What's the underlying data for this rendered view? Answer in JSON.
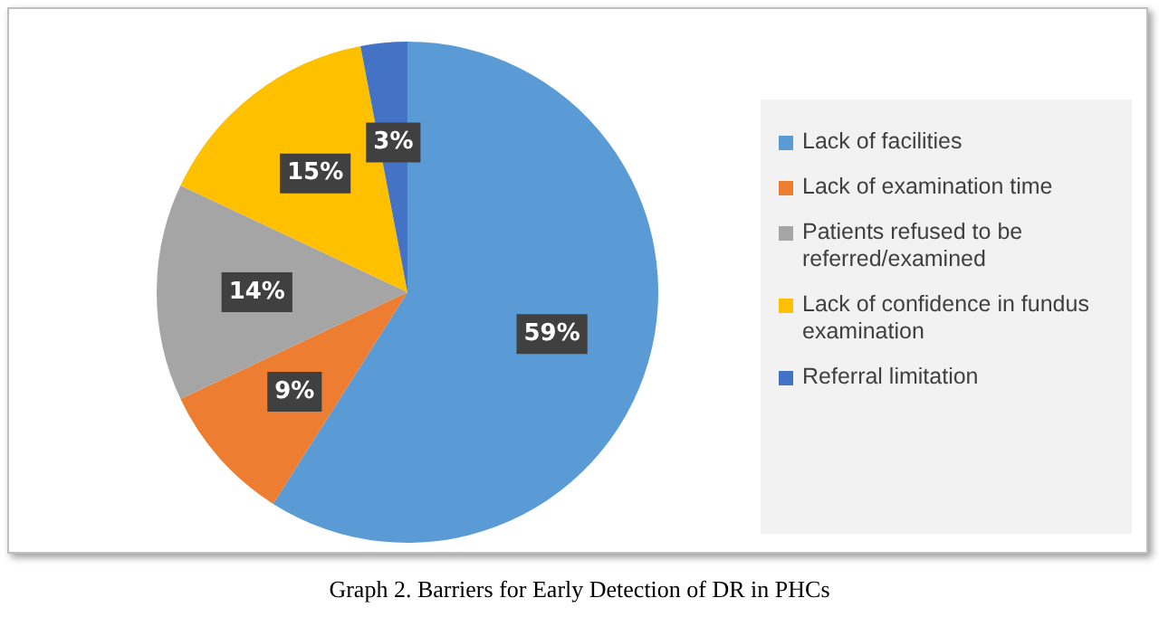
{
  "chart_data": {
    "type": "pie",
    "title": "Graph 2. Barriers for Early Detection of DR in PHCs",
    "categories": [
      "Lack of facilities",
      "Lack of examination time",
      "Patients refused to be referred/examined",
      "Lack of confidence in fundus examination",
      "Referral limitation"
    ],
    "values": [
      59,
      9,
      14,
      15,
      3
    ],
    "value_labels": [
      "59%",
      "9%",
      "14%",
      "15%",
      "3%"
    ],
    "colors": [
      "#5b9bd5",
      "#ed7d31",
      "#a5a5a5",
      "#ffc000",
      "#4472c4"
    ],
    "legend": "right"
  }
}
